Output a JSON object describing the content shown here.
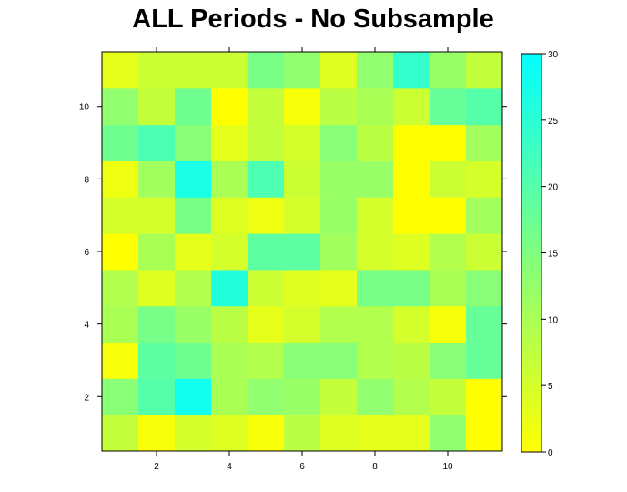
{
  "chart_data": {
    "type": "heatmap",
    "title": "ALL Periods - No Subsample",
    "xlabel": "",
    "ylabel": "",
    "x": [
      1,
      2,
      3,
      4,
      5,
      6,
      7,
      8,
      9,
      10,
      11
    ],
    "y": [
      1,
      2,
      3,
      4,
      5,
      6,
      7,
      8,
      9,
      10,
      11
    ],
    "xlim": [
      0.5,
      11.5
    ],
    "ylim": [
      0.5,
      11.5
    ],
    "x_ticks": [
      2,
      4,
      6,
      8,
      10
    ],
    "x_tick_labels": [
      "2",
      "4",
      "6",
      "8",
      "10"
    ],
    "y_ticks": [
      2,
      4,
      6,
      8,
      10
    ],
    "y_tick_labels": [
      "2",
      "4",
      "6",
      "8",
      "10"
    ],
    "values": [
      [
        7,
        1,
        5,
        4,
        1,
        8,
        4,
        3,
        3,
        13,
        0
      ],
      [
        14,
        20,
        28,
        10,
        13,
        12,
        7,
        13,
        9,
        7,
        0
      ],
      [
        1,
        19,
        17,
        10,
        9,
        14,
        14,
        9,
        8,
        14,
        18
      ],
      [
        10,
        16,
        12,
        8,
        3,
        5,
        9,
        9,
        5,
        1,
        18
      ],
      [
        9,
        4,
        9,
        26,
        6,
        4,
        3,
        16,
        16,
        10,
        14
      ],
      [
        0,
        10,
        3,
        5,
        19,
        19,
        11,
        5,
        4,
        9,
        6
      ],
      [
        5,
        5,
        16,
        4,
        2,
        5,
        12,
        5,
        0,
        0,
        11
      ],
      [
        2,
        11,
        27,
        10,
        21,
        6,
        12,
        12,
        0,
        6,
        5
      ],
      [
        17,
        21,
        14,
        3,
        7,
        5,
        14,
        8,
        0,
        0,
        11
      ],
      [
        13,
        7,
        17,
        0,
        7,
        1,
        8,
        10,
        6,
        18,
        20
      ],
      [
        3,
        6,
        6,
        6,
        16,
        13,
        4,
        13,
        24,
        12,
        7
      ]
    ],
    "colorbar": {
      "min": 0,
      "max": 30,
      "ticks": [
        0,
        5,
        10,
        15,
        20,
        25,
        30
      ],
      "tick_labels": [
        "0",
        "5",
        "10",
        "15",
        "20",
        "25",
        "30"
      ],
      "low_color": "#ffff00",
      "high_color": "#00ffff"
    },
    "grid": false,
    "legend": "right"
  }
}
